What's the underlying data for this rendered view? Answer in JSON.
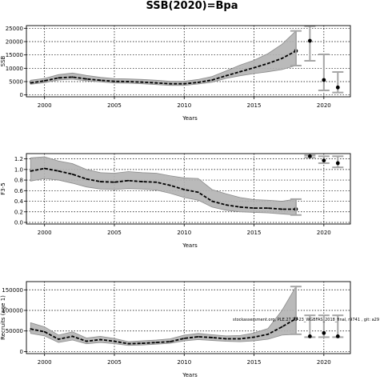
{
  "title": "SSB(2020)=Bpa",
  "footnote": "stockassessment.org, PLE.27.21-23_WGBFAS_2018_final, r9741 , git: a29",
  "chart_data": [
    {
      "type": "line",
      "ylabel": "SSB",
      "xlabel": "Years",
      "xlim": [
        1998.7,
        2021.9
      ],
      "ylim": [
        -700,
        26000
      ],
      "xticks": [
        2000,
        2005,
        2010,
        2015,
        2020
      ],
      "yticks": [
        0,
        5000,
        10000,
        15000,
        20000,
        25000
      ],
      "ytick_labels": [
        "0",
        "5000",
        "10000",
        "15000",
        "20000",
        "25000"
      ],
      "grid": true,
      "x": [
        1999,
        2000,
        2001,
        2002,
        2003,
        2004,
        2005,
        2006,
        2007,
        2008,
        2009,
        2010,
        2011,
        2012,
        2013,
        2014,
        2015,
        2016,
        2017,
        2018
      ],
      "estimate": [
        4500,
        5300,
        6400,
        6700,
        6000,
        5500,
        5100,
        5000,
        4800,
        4500,
        4200,
        4200,
        4700,
        5600,
        7200,
        8700,
        10200,
        11800,
        13700,
        16500
      ],
      "lower": [
        4000,
        4600,
        5600,
        5900,
        5300,
        4900,
        4500,
        4400,
        4200,
        3900,
        3600,
        3600,
        4100,
        4800,
        6200,
        7200,
        8000,
        8700,
        9500,
        11000
      ],
      "upper": [
        5500,
        6200,
        7600,
        8200,
        7300,
        6600,
        6100,
        6000,
        5800,
        5500,
        5100,
        5100,
        5800,
        6900,
        9000,
        11200,
        13000,
        15500,
        19000,
        24000
      ],
      "forecast": [
        {
          "x": 2019,
          "value": 20300,
          "low": 12800,
          "high": 25800
        },
        {
          "x": 2020,
          "value": 5600,
          "low": 1700,
          "high": 15200
        },
        {
          "x": 2021,
          "value": 2800,
          "low": 900,
          "high": 8600
        }
      ]
    },
    {
      "type": "line",
      "ylabel": "F3-5",
      "xlabel": "Years",
      "xlim": [
        1998.7,
        2021.9
      ],
      "ylim": [
        -0.03,
        1.3
      ],
      "xticks": [
        2000,
        2005,
        2010,
        2015,
        2020
      ],
      "yticks": [
        0.0,
        0.2,
        0.4,
        0.6,
        0.8,
        1.0,
        1.2
      ],
      "ytick_labels": [
        "0.0",
        "0.2",
        "0.4",
        "0.6",
        "0.8",
        "1.0",
        "1.2"
      ],
      "grid": true,
      "x": [
        1999,
        2000,
        2001,
        2002,
        2003,
        2004,
        2005,
        2006,
        2007,
        2008,
        2009,
        2010,
        2011,
        2012,
        2013,
        2014,
        2015,
        2016,
        2017,
        2018
      ],
      "estimate": [
        0.97,
        1.02,
        0.97,
        0.91,
        0.82,
        0.77,
        0.76,
        0.79,
        0.77,
        0.76,
        0.7,
        0.62,
        0.57,
        0.4,
        0.33,
        0.29,
        0.27,
        0.27,
        0.25,
        0.25
      ],
      "lower": [
        0.78,
        0.83,
        0.8,
        0.74,
        0.67,
        0.63,
        0.62,
        0.64,
        0.63,
        0.61,
        0.55,
        0.47,
        0.42,
        0.29,
        0.23,
        0.2,
        0.19,
        0.18,
        0.16,
        0.14
      ],
      "upper": [
        1.22,
        1.24,
        1.16,
        1.11,
        1.0,
        0.94,
        0.93,
        0.96,
        0.94,
        0.93,
        0.88,
        0.84,
        0.83,
        0.62,
        0.54,
        0.47,
        0.43,
        0.42,
        0.4,
        0.44
      ],
      "forecast": [
        {
          "x": 2019,
          "value": 1.25,
          "low": 1.23,
          "high": 1.27
        },
        {
          "x": 2020,
          "value": 1.17,
          "low": 1.12,
          "high": 1.25
        },
        {
          "x": 2021,
          "value": 1.12,
          "low": 1.04,
          "high": 1.25
        }
      ]
    },
    {
      "type": "line",
      "ylabel": "Recruits (age 1)",
      "xlabel": "Years",
      "xlim": [
        1998.7,
        2021.9
      ],
      "ylim": [
        -5000,
        170000
      ],
      "xticks": [
        2000,
        2005,
        2010,
        2015,
        2020
      ],
      "yticks": [
        0,
        50000,
        100000,
        150000
      ],
      "ytick_labels": [
        "0",
        "50000",
        "100000",
        "150000"
      ],
      "grid": true,
      "x": [
        1999,
        2000,
        2001,
        2002,
        2003,
        2004,
        2005,
        2006,
        2007,
        2008,
        2009,
        2010,
        2011,
        2012,
        2013,
        2014,
        2015,
        2016,
        2017,
        2018
      ],
      "estimate": [
        55000,
        48000,
        30000,
        37000,
        25000,
        29000,
        25000,
        19000,
        20000,
        22000,
        24000,
        32000,
        36000,
        34000,
        31000,
        31000,
        35000,
        42000,
        60000,
        80000
      ],
      "lower": [
        44000,
        38000,
        22000,
        28000,
        19000,
        22000,
        19000,
        15000,
        16000,
        18000,
        20000,
        26000,
        29000,
        27000,
        25000,
        24000,
        26000,
        30000,
        40000,
        42000
      ],
      "upper": [
        70000,
        60000,
        40000,
        48000,
        33000,
        37000,
        32000,
        24000,
        26000,
        28000,
        31000,
        40000,
        44000,
        41000,
        38000,
        39000,
        45000,
        56000,
        100000,
        158000
      ],
      "forecast": [
        {
          "x": 2019,
          "value": 37000,
          "low": 35000,
          "high": 88000
        },
        {
          "x": 2020,
          "value": 45000,
          "low": 35000,
          "high": 88000
        },
        {
          "x": 2021,
          "value": 37000,
          "low": 35000,
          "high": 88000
        }
      ]
    }
  ]
}
